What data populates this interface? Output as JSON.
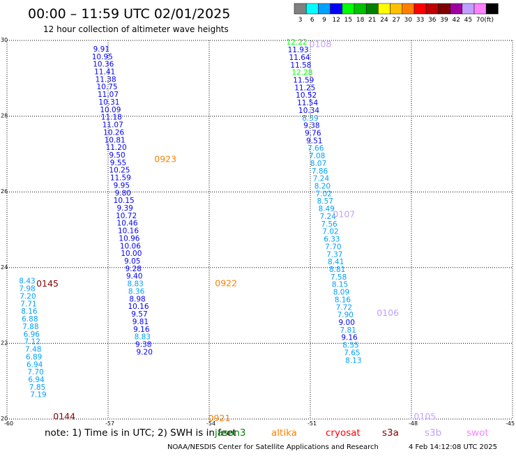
{
  "header": {
    "title": "00:00 – 11:59 UTC 02/01/2025",
    "subtitle": "12 hour collection of altimeter wave heights"
  },
  "colorbar": {
    "unit": "(ft)",
    "bins": [
      {
        "label": "3",
        "color": "#808080"
      },
      {
        "label": "6",
        "color": "#00ffff"
      },
      {
        "label": "9",
        "color": "#00a0ff"
      },
      {
        "label": "12",
        "color": "#0000ff"
      },
      {
        "label": "15",
        "color": "#00ff00"
      },
      {
        "label": "18",
        "color": "#00c000"
      },
      {
        "label": "21",
        "color": "#008000"
      },
      {
        "label": "24",
        "color": "#ffff00"
      },
      {
        "label": "27",
        "color": "#ffc000"
      },
      {
        "label": "30",
        "color": "#ff8000"
      },
      {
        "label": "33",
        "color": "#ff0000"
      },
      {
        "label": "36",
        "color": "#c00000"
      },
      {
        "label": "39",
        "color": "#800000"
      },
      {
        "label": "42",
        "color": "#a000a0"
      },
      {
        "label": "45",
        "color": "#c0a0ff"
      },
      {
        "label": "70",
        "color": "#ff80ff"
      },
      {
        "label": "",
        "color": "#000000"
      }
    ]
  },
  "chart_data": {
    "type": "scatter",
    "title": "00:00 – 11:59 UTC 02/01/2025",
    "subtitle": "12 hour collection of altimeter wave heights",
    "xlim": [
      -60,
      -45
    ],
    "ylim": [
      20,
      30
    ],
    "x_ticks": [
      "-60",
      "-57",
      "-54",
      "-51",
      "-48",
      "-45"
    ],
    "y_ticks": [
      "20",
      "22",
      "24",
      "26",
      "28",
      "30"
    ],
    "grid": true,
    "passes": [
      {
        "label": "0144",
        "color": "#800000",
        "x": -58.3,
        "y": 20.08
      },
      {
        "label": "0145",
        "color": "#800000",
        "x": -58.8,
        "y": 23.59
      },
      {
        "label": "0921",
        "color": "#ff8000",
        "x": -53.7,
        "y": 20.04
      },
      {
        "label": "0922",
        "color": "#ff8000",
        "x": -53.5,
        "y": 23.6
      },
      {
        "label": "0923",
        "color": "#ff8000",
        "x": -55.3,
        "y": 26.88
      },
      {
        "label": "0105",
        "color": "#c0a0ff",
        "x": -47.6,
        "y": 20.08
      },
      {
        "label": "0106",
        "color": "#c0a0ff",
        "x": -48.7,
        "y": 22.82
      },
      {
        "label": "0107",
        "color": "#c0a0ff",
        "x": -50.0,
        "y": 25.42
      },
      {
        "label": "0108",
        "color": "#c0a0ff",
        "x": -50.7,
        "y": 29.92
      }
    ],
    "tracks": [
      {
        "name": "track-a",
        "points": [
          {
            "x": -59.4,
            "y": 23.66,
            "v": "8.43",
            "color": "#00a0ff"
          },
          {
            "x": -59.4,
            "y": 23.45,
            "v": "7.98",
            "color": "#00a0ff"
          },
          {
            "x": -59.38,
            "y": 23.25,
            "v": "7.20",
            "color": "#00a0ff"
          },
          {
            "x": -59.36,
            "y": 23.05,
            "v": "7.71",
            "color": "#00a0ff"
          },
          {
            "x": -59.34,
            "y": 22.85,
            "v": "8.16",
            "color": "#00a0ff"
          },
          {
            "x": -59.32,
            "y": 22.65,
            "v": "6.88",
            "color": "#00a0ff"
          },
          {
            "x": -59.3,
            "y": 22.45,
            "v": "7.88",
            "color": "#00a0ff"
          },
          {
            "x": -59.27,
            "y": 22.25,
            "v": "6.96",
            "color": "#00a0ff"
          },
          {
            "x": -59.25,
            "y": 22.05,
            "v": "7.12",
            "color": "#00a0ff"
          },
          {
            "x": -59.22,
            "y": 21.85,
            "v": "7.48",
            "color": "#00a0ff"
          },
          {
            "x": -59.2,
            "y": 21.65,
            "v": "6.89",
            "color": "#00a0ff"
          },
          {
            "x": -59.18,
            "y": 21.45,
            "v": "6.94",
            "color": "#00a0ff"
          },
          {
            "x": -59.15,
            "y": 21.25,
            "v": "7.70",
            "color": "#00a0ff"
          },
          {
            "x": -59.13,
            "y": 21.05,
            "v": "6.94",
            "color": "#00a0ff"
          },
          {
            "x": -59.1,
            "y": 20.85,
            "v": "7.85",
            "color": "#00a0ff"
          },
          {
            "x": -59.07,
            "y": 20.65,
            "v": "7.19",
            "color": "#00a0ff"
          }
        ]
      },
      {
        "name": "track-b",
        "points": [
          {
            "x": -57.2,
            "y": 29.78,
            "v": "9.91",
            "color": "#0000ff"
          },
          {
            "x": -57.17,
            "y": 29.58,
            "v": "10.95",
            "color": "#0000ff"
          },
          {
            "x": -57.14,
            "y": 29.38,
            "v": "10.36",
            "color": "#0000ff"
          },
          {
            "x": -57.1,
            "y": 29.18,
            "v": "11.41",
            "color": "#0000ff"
          },
          {
            "x": -57.07,
            "y": 28.98,
            "v": "11.38",
            "color": "#0000ff"
          },
          {
            "x": -57.03,
            "y": 28.78,
            "v": "10.75",
            "color": "#0000ff"
          },
          {
            "x": -57.0,
            "y": 28.58,
            "v": "11.07",
            "color": "#0000ff"
          },
          {
            "x": -56.97,
            "y": 28.38,
            "v": "10.31",
            "color": "#0000ff"
          },
          {
            "x": -56.93,
            "y": 28.18,
            "v": "10.09",
            "color": "#0000ff"
          },
          {
            "x": -56.9,
            "y": 27.98,
            "v": "11.18",
            "color": "#0000ff"
          },
          {
            "x": -56.86,
            "y": 27.78,
            "v": "11.07",
            "color": "#0000ff"
          },
          {
            "x": -56.83,
            "y": 27.58,
            "v": "10.26",
            "color": "#0000ff"
          },
          {
            "x": -56.8,
            "y": 27.38,
            "v": "10.81",
            "color": "#0000ff"
          },
          {
            "x": -56.76,
            "y": 27.18,
            "v": "11.20",
            "color": "#0000ff"
          },
          {
            "x": -56.73,
            "y": 26.98,
            "v": "9.50",
            "color": "#0000ff"
          },
          {
            "x": -56.7,
            "y": 26.78,
            "v": "9.55",
            "color": "#0000ff"
          },
          {
            "x": -56.66,
            "y": 26.58,
            "v": "10.25",
            "color": "#0000ff"
          },
          {
            "x": -56.63,
            "y": 26.38,
            "v": "11.59",
            "color": "#0000ff"
          },
          {
            "x": -56.6,
            "y": 26.18,
            "v": "9.95",
            "color": "#0000ff"
          },
          {
            "x": -56.56,
            "y": 25.98,
            "v": "9.80",
            "color": "#0000ff"
          },
          {
            "x": -56.53,
            "y": 25.78,
            "v": "10.15",
            "color": "#0000ff"
          },
          {
            "x": -56.5,
            "y": 25.58,
            "v": "9.39",
            "color": "#0000ff"
          },
          {
            "x": -56.46,
            "y": 25.38,
            "v": "10.72",
            "color": "#0000ff"
          },
          {
            "x": -56.43,
            "y": 25.18,
            "v": "10.46",
            "color": "#0000ff"
          },
          {
            "x": -56.4,
            "y": 24.98,
            "v": "10.16",
            "color": "#0000ff"
          },
          {
            "x": -56.37,
            "y": 24.78,
            "v": "10.96",
            "color": "#0000ff"
          },
          {
            "x": -56.34,
            "y": 24.58,
            "v": "10.06",
            "color": "#0000ff"
          },
          {
            "x": -56.31,
            "y": 24.38,
            "v": "10.00",
            "color": "#0000ff"
          },
          {
            "x": -56.28,
            "y": 24.18,
            "v": "9.05",
            "color": "#0000ff"
          },
          {
            "x": -56.25,
            "y": 23.98,
            "v": "9.28",
            "color": "#0000ff"
          },
          {
            "x": -56.22,
            "y": 23.78,
            "v": "9.40",
            "color": "#0000ff"
          },
          {
            "x": -56.19,
            "y": 23.58,
            "v": "8.83",
            "color": "#00a0ff"
          },
          {
            "x": -56.16,
            "y": 23.38,
            "v": "8.36",
            "color": "#00a0ff"
          },
          {
            "x": -56.13,
            "y": 23.18,
            "v": "8.98",
            "color": "#0000ff"
          },
          {
            "x": -56.1,
            "y": 22.98,
            "v": "10.16",
            "color": "#0000ff"
          },
          {
            "x": -56.07,
            "y": 22.78,
            "v": "9.57",
            "color": "#0000ff"
          },
          {
            "x": -56.04,
            "y": 22.58,
            "v": "9.81",
            "color": "#0000ff"
          },
          {
            "x": -56.01,
            "y": 22.38,
            "v": "9.16",
            "color": "#0000ff"
          },
          {
            "x": -55.98,
            "y": 22.18,
            "v": "8.83",
            "color": "#00a0ff"
          },
          {
            "x": -55.95,
            "y": 21.98,
            "v": "9.38",
            "color": "#0000ff"
          },
          {
            "x": -55.92,
            "y": 21.78,
            "v": "9.20",
            "color": "#0000ff"
          }
        ]
      },
      {
        "name": "track-c",
        "points": [
          {
            "x": -51.4,
            "y": 29.96,
            "v": "12.22",
            "color": "#00ff00"
          },
          {
            "x": -51.36,
            "y": 29.76,
            "v": "11.93",
            "color": "#0000ff"
          },
          {
            "x": -51.32,
            "y": 29.56,
            "v": "11.64",
            "color": "#0000ff"
          },
          {
            "x": -51.28,
            "y": 29.36,
            "v": "11.58",
            "color": "#0000ff"
          },
          {
            "x": -51.24,
            "y": 29.16,
            "v": "12.28",
            "color": "#00ff00"
          },
          {
            "x": -51.2,
            "y": 28.96,
            "v": "11.59",
            "color": "#0000ff"
          },
          {
            "x": -51.16,
            "y": 28.76,
            "v": "11.25",
            "color": "#0000ff"
          },
          {
            "x": -51.12,
            "y": 28.56,
            "v": "10.52",
            "color": "#0000ff"
          },
          {
            "x": -51.08,
            "y": 28.36,
            "v": "11.54",
            "color": "#0000ff"
          },
          {
            "x": -51.04,
            "y": 28.16,
            "v": "10.34",
            "color": "#0000ff"
          },
          {
            "x": -51.0,
            "y": 27.96,
            "v": "8.59",
            "color": "#00a0ff"
          },
          {
            "x": -50.96,
            "y": 27.76,
            "v": "9.38",
            "color": "#0000ff"
          },
          {
            "x": -50.92,
            "y": 27.56,
            "v": "9.76",
            "color": "#0000ff"
          },
          {
            "x": -50.88,
            "y": 27.36,
            "v": "9.51",
            "color": "#0000ff"
          },
          {
            "x": -50.84,
            "y": 27.16,
            "v": "7.66",
            "color": "#00a0ff"
          },
          {
            "x": -50.8,
            "y": 26.96,
            "v": "7.08",
            "color": "#00a0ff"
          },
          {
            "x": -50.76,
            "y": 26.76,
            "v": "8.07",
            "color": "#00a0ff"
          },
          {
            "x": -50.72,
            "y": 26.56,
            "v": "7.86",
            "color": "#00a0ff"
          },
          {
            "x": -50.68,
            "y": 26.36,
            "v": "7.24",
            "color": "#00a0ff"
          },
          {
            "x": -50.64,
            "y": 26.16,
            "v": "8.20",
            "color": "#00a0ff"
          },
          {
            "x": -50.6,
            "y": 25.96,
            "v": "7.02",
            "color": "#00a0ff"
          },
          {
            "x": -50.56,
            "y": 25.76,
            "v": "8.57",
            "color": "#00a0ff"
          },
          {
            "x": -50.52,
            "y": 25.56,
            "v": "8.49",
            "color": "#00a0ff"
          },
          {
            "x": -50.48,
            "y": 25.36,
            "v": "7.24",
            "color": "#00a0ff"
          },
          {
            "x": -50.44,
            "y": 25.16,
            "v": "7.56",
            "color": "#00a0ff"
          },
          {
            "x": -50.4,
            "y": 24.96,
            "v": "7.02",
            "color": "#00a0ff"
          },
          {
            "x": -50.36,
            "y": 24.76,
            "v": "6.33",
            "color": "#00a0ff"
          },
          {
            "x": -50.32,
            "y": 24.56,
            "v": "7.70",
            "color": "#00a0ff"
          },
          {
            "x": -50.28,
            "y": 24.36,
            "v": "7.37",
            "color": "#00a0ff"
          },
          {
            "x": -50.24,
            "y": 24.16,
            "v": "8.41",
            "color": "#00a0ff"
          },
          {
            "x": -50.2,
            "y": 23.96,
            "v": "8.81",
            "color": "#00a0ff"
          },
          {
            "x": -50.16,
            "y": 23.76,
            "v": "7.58",
            "color": "#00a0ff"
          },
          {
            "x": -50.12,
            "y": 23.56,
            "v": "8.15",
            "color": "#00a0ff"
          },
          {
            "x": -50.08,
            "y": 23.36,
            "v": "8.09",
            "color": "#00a0ff"
          },
          {
            "x": -50.04,
            "y": 23.16,
            "v": "8.16",
            "color": "#00a0ff"
          },
          {
            "x": -50.0,
            "y": 22.96,
            "v": "7.72",
            "color": "#00a0ff"
          },
          {
            "x": -49.96,
            "y": 22.76,
            "v": "7.90",
            "color": "#00a0ff"
          },
          {
            "x": -49.92,
            "y": 22.56,
            "v": "9.00",
            "color": "#0000ff"
          },
          {
            "x": -49.88,
            "y": 22.36,
            "v": "7.81",
            "color": "#00a0ff"
          },
          {
            "x": -49.84,
            "y": 22.16,
            "v": "9.16",
            "color": "#0000ff"
          },
          {
            "x": -49.8,
            "y": 21.96,
            "v": "8.55",
            "color": "#00a0ff"
          },
          {
            "x": -49.76,
            "y": 21.76,
            "v": "7.65",
            "color": "#00a0ff"
          },
          {
            "x": -49.72,
            "y": 21.56,
            "v": "8.13",
            "color": "#00a0ff"
          }
        ]
      }
    ]
  },
  "footer": {
    "note": "note: 1) Time is in UTC; 2) SWH is in feet",
    "satellites": [
      {
        "name": "jason3",
        "color": "#008000"
      },
      {
        "name": "altika",
        "color": "#ff8000"
      },
      {
        "name": "cryosat",
        "color": "#ff0000"
      },
      {
        "name": "s3a",
        "color": "#800000"
      },
      {
        "name": "s3b",
        "color": "#c0a0ff"
      },
      {
        "name": "swot",
        "color": "#ff80ff"
      }
    ],
    "credit": "NOAA/NESDIS Center for Satellite Applications and Research",
    "timestamp": "4 Feb 14:12:08 UTC 2025"
  }
}
